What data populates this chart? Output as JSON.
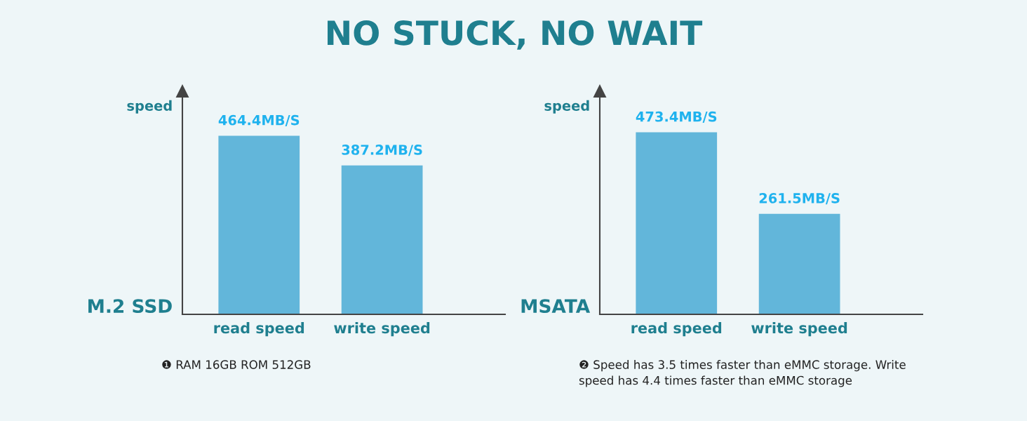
{
  "chart_data": [
    {
      "type": "bar",
      "title": "NO STUCK, NO WAIT",
      "ylabel": "speed",
      "xlabel": "M.2 SSD",
      "categories": [
        "read speed",
        "write speed"
      ],
      "values": [
        464.4,
        387.2
      ],
      "value_labels": [
        "464.4MB/S",
        "387.2MB/S"
      ],
      "color": "#62b6da",
      "ylim": [
        0,
        580
      ],
      "tick_labels": "x",
      "grid": false,
      "legend": false,
      "annotations": [
        "❶ RAM 16GB ROM 512GB"
      ]
    },
    {
      "type": "bar",
      "ylabel": "speed",
      "xlabel": "MSATA",
      "categories": [
        "read speed",
        "write speed"
      ],
      "values": [
        473.4,
        261.5
      ],
      "value_labels": [
        "473.4MB/S",
        "261.5MB/S"
      ],
      "color": "#62b6da",
      "ylim": [
        0,
        580
      ],
      "tick_labels": "x",
      "grid": false,
      "legend": false,
      "annotations": [
        "❷ Speed has 3.5 times faster than eMMC storage. Write\nspeed has 4.4 times faster than eMMC storage"
      ]
    }
  ]
}
